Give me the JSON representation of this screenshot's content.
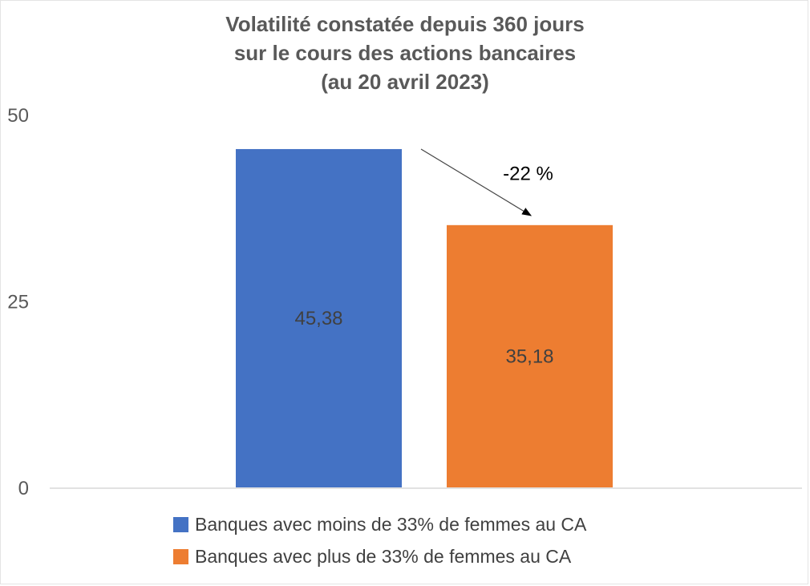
{
  "chart_data": {
    "type": "bar",
    "title_lines": [
      "Volatilité constatée depuis 360 jours",
      "sur le cours des actions bancaires",
      "(au 20 avril 2023)"
    ],
    "categories": [
      "",
      ""
    ],
    "series": [
      {
        "name": "Banques avec moins de 33% de femmes au CA",
        "value": 45.38,
        "label": "45,38",
        "color": "#4472C4"
      },
      {
        "name": "Banques avec plus de 33% de femmes au CA",
        "value": 35.18,
        "label": "35,18",
        "color": "#ED7D31"
      }
    ],
    "ylim": [
      0,
      50
    ],
    "yticks": [
      {
        "value": 0,
        "label": "0"
      },
      {
        "value": 25,
        "label": "25"
      },
      {
        "value": 50,
        "label": "50"
      }
    ],
    "grid": false,
    "legend_position": "bottom",
    "annotation": {
      "text": "-22 %",
      "from_series": 0,
      "to_series": 1
    }
  }
}
